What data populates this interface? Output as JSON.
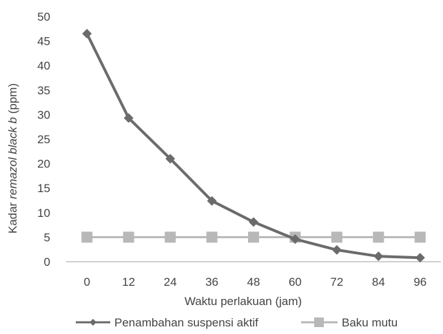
{
  "chart_data": {
    "type": "line",
    "xlabel": "Waktu perlakuan (jam)",
    "ylabel_parts": [
      "Kadar ",
      "remazol black b",
      " (ppm)"
    ],
    "categories": [
      "0",
      "12",
      "24",
      "36",
      "48",
      "60",
      "72",
      "84",
      "96"
    ],
    "ylim": [
      0,
      50
    ],
    "yticks": [
      "0",
      "5",
      "10",
      "15",
      "20",
      "25",
      "30",
      "35",
      "40",
      "45",
      "50"
    ],
    "grid": false,
    "legend_position": "bottom",
    "series": [
      {
        "name": "Penambahan suspensi aktif",
        "values": [
          46.5,
          29.3,
          21.0,
          12.4,
          8.1,
          4.6,
          2.4,
          1.1,
          0.8
        ],
        "color": "#6b6b6b",
        "marker": "diamond"
      },
      {
        "name": "Baku mutu",
        "values": [
          5,
          5,
          5,
          5,
          5,
          5,
          5,
          5,
          5
        ],
        "color": "#b8b8b8",
        "marker": "square"
      }
    ]
  }
}
